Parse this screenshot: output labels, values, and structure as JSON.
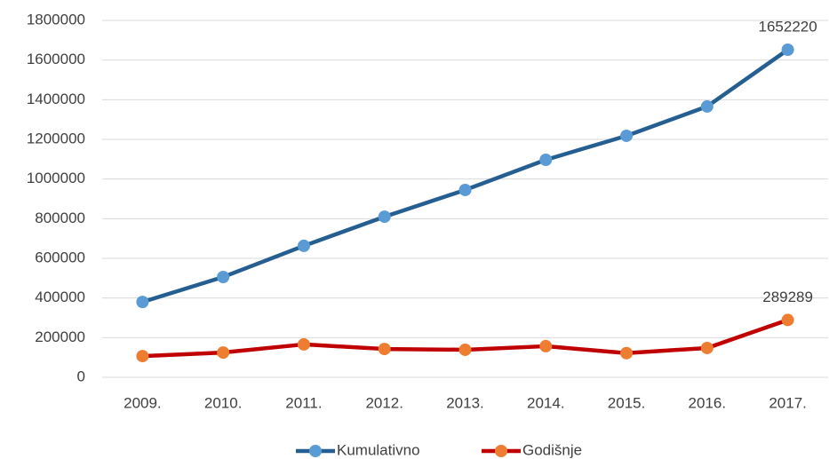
{
  "chart_data": {
    "type": "line",
    "categories": [
      "2009.",
      "2010.",
      "2011.",
      "2012.",
      "2013.",
      "2014.",
      "2015.",
      "2016.",
      "2017."
    ],
    "series": [
      {
        "name": "Kumulativno",
        "color": "#255e91",
        "marker_color": "#5b9bd5",
        "values": [
          380000,
          506000,
          663000,
          810000,
          945000,
          1097000,
          1218000,
          1366000,
          1652220
        ],
        "value_labels": [
          null,
          null,
          null,
          null,
          null,
          null,
          null,
          null,
          "1652220"
        ]
      },
      {
        "name": "Godišnje",
        "color": "#c00000",
        "marker_color": "#ed7d31",
        "values": [
          107000,
          125000,
          166000,
          143000,
          139000,
          157000,
          122000,
          148000,
          289289
        ],
        "value_labels": [
          null,
          null,
          null,
          null,
          null,
          null,
          null,
          null,
          "289289"
        ]
      }
    ],
    "ylim": [
      0,
      1800000
    ],
    "yticks": [
      0,
      200000,
      400000,
      600000,
      800000,
      1000000,
      1200000,
      1400000,
      1600000,
      1800000
    ],
    "grid": true,
    "legend": "bottom"
  }
}
